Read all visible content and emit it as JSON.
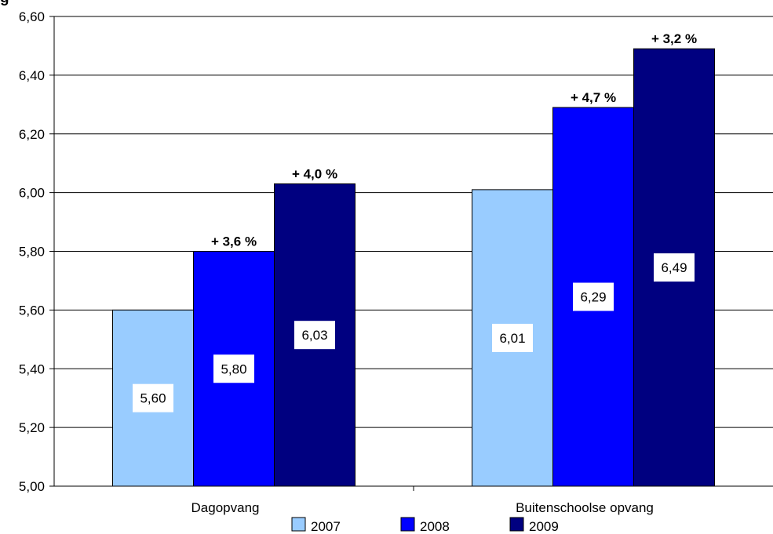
{
  "title": "g",
  "chart_data": {
    "type": "bar",
    "categories": [
      "Dagopvang",
      "Buitenschoolse opvang"
    ],
    "series": [
      {
        "name": "2007",
        "color": "#99CCFF",
        "values": [
          5.6,
          6.01
        ],
        "value_labels": [
          "5,60",
          "6,01"
        ],
        "change_labels": [
          "",
          ""
        ]
      },
      {
        "name": "2008",
        "color": "#0000FF",
        "values": [
          5.8,
          6.29
        ],
        "value_labels": [
          "5,80",
          "6,29"
        ],
        "change_labels": [
          "+ 3,6 %",
          "+ 4,7 %"
        ]
      },
      {
        "name": "2009",
        "color": "#000080",
        "values": [
          6.03,
          6.49
        ],
        "value_labels": [
          "6,03",
          "6,49"
        ],
        "change_labels": [
          "+ 4,0 %",
          "+ 3,2 %"
        ]
      }
    ],
    "ylim": [
      5.0,
      6.6
    ],
    "yticks": [
      5.0,
      5.2,
      5.4,
      5.6,
      5.8,
      6.0,
      6.2,
      6.4,
      6.6
    ],
    "ytick_labels": [
      "5,00",
      "5,20",
      "5,40",
      "5,60",
      "5,80",
      "6,00",
      "6,20",
      "6,40",
      "6,60"
    ],
    "grid": true,
    "legend_position": "bottom"
  }
}
